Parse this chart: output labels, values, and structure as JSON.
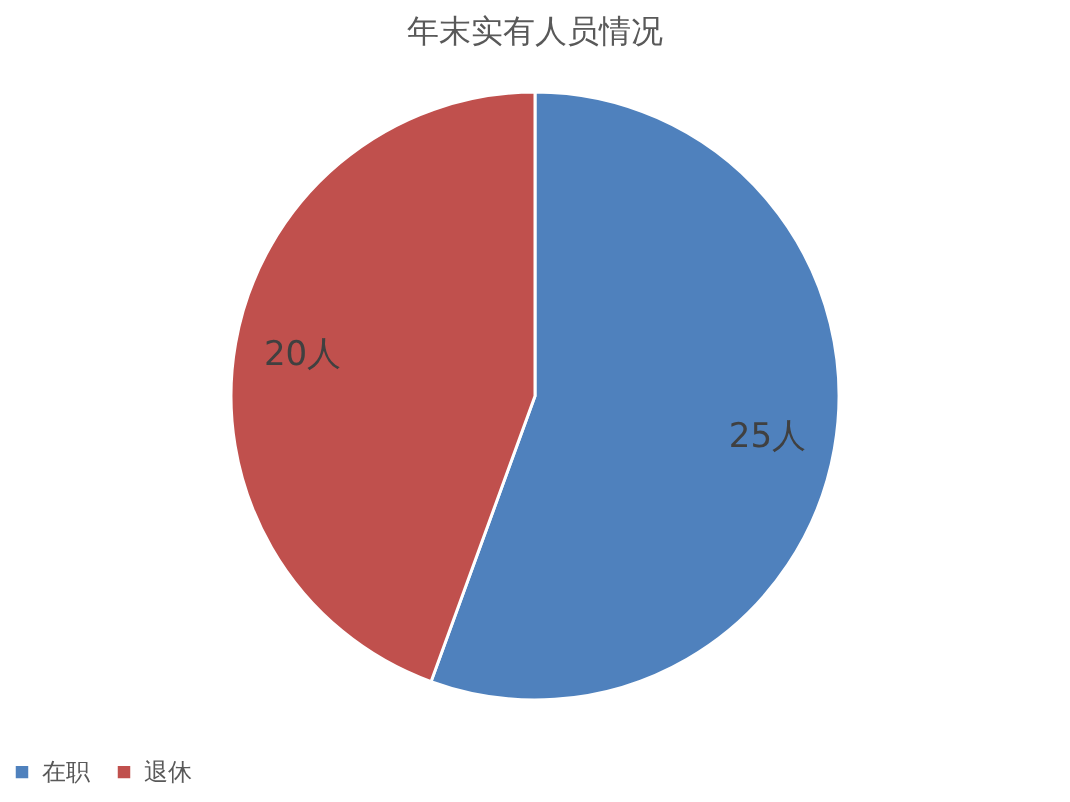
{
  "chart_data": {
    "type": "pie",
    "title": "年末实有人员情况",
    "categories": [
      "在职",
      "退休"
    ],
    "values": [
      25,
      20
    ],
    "colors": [
      "#4f81bd",
      "#c0504d"
    ],
    "value_labels": [
      "25人",
      "20人"
    ],
    "legend": "bottom"
  }
}
